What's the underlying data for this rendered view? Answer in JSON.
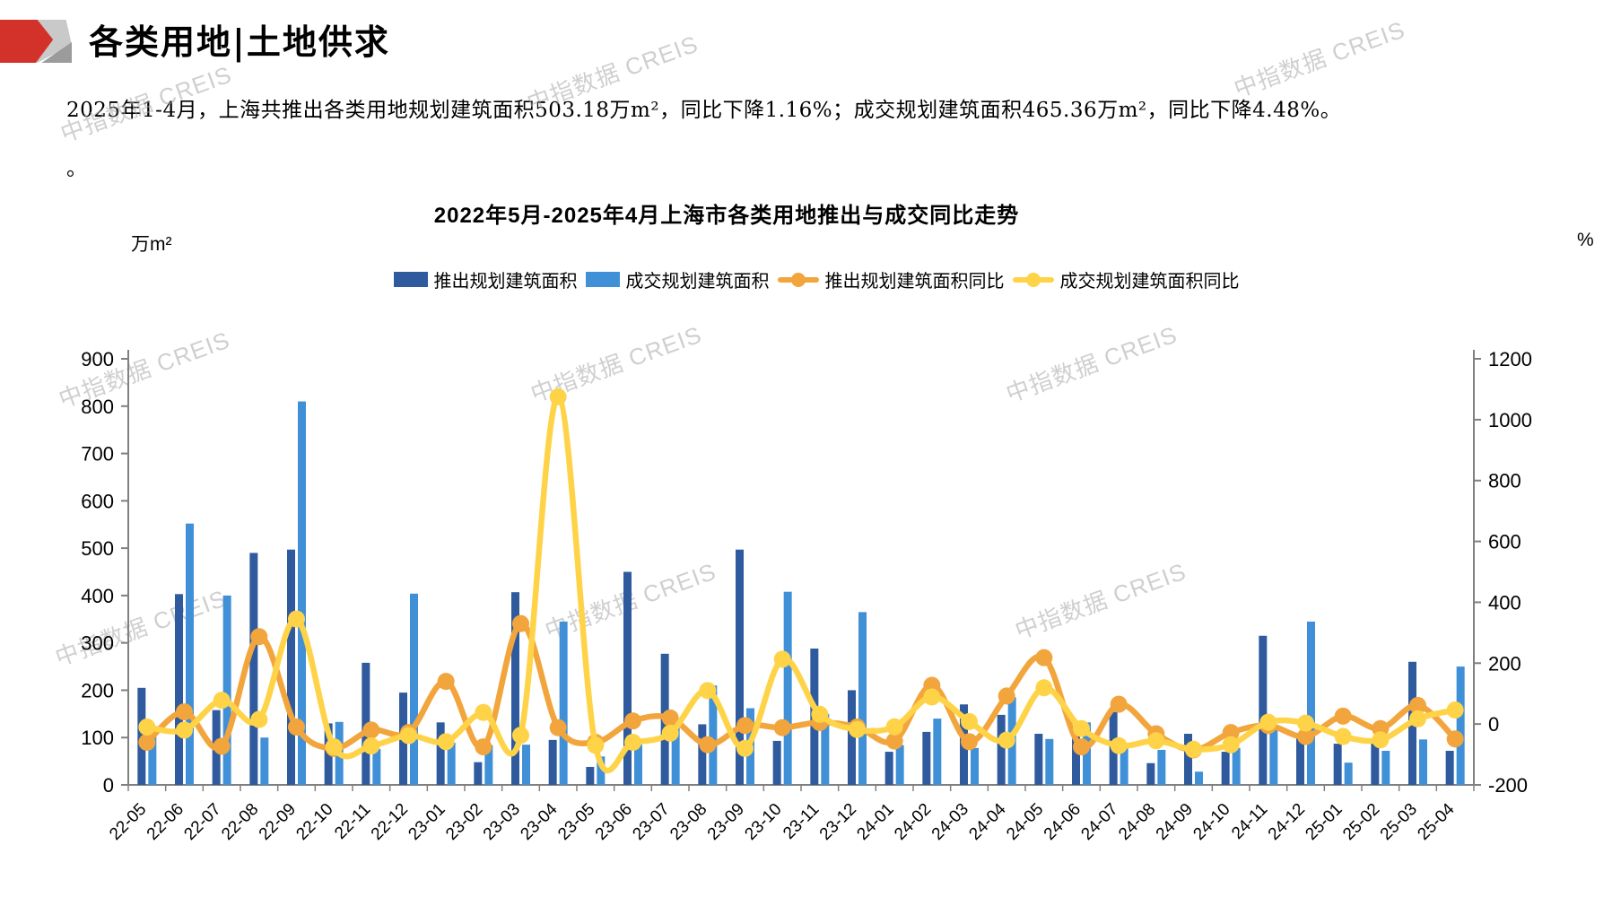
{
  "page": {
    "header_title": "各类用地|土地供求",
    "summary_line1": "2025年1-4月，上海共推出各类用地规划建筑面积503.18万m²，同比下降1.16%；成交规划建筑面积465.36万m²，同比下降4.48%。",
    "summary_line2": "。",
    "watermark_text": "中指数据 CREIS"
  },
  "chart_data": {
    "type": "bar+line combo",
    "title": "2022年5月-2025年4月上海市各类用地推出与成交同比走势",
    "left_axis": {
      "unit": "万m²",
      "min": 0,
      "max": 900,
      "step": 100
    },
    "right_axis": {
      "unit": "%",
      "min": -200,
      "max": 1200,
      "step": 200
    },
    "grid": "off",
    "legend_position": "top",
    "categories": [
      "22-05",
      "22-06",
      "22-07",
      "22-08",
      "22-09",
      "22-10",
      "22-11",
      "22-12",
      "23-01",
      "23-02",
      "23-03",
      "23-04",
      "23-05",
      "23-06",
      "23-07",
      "23-08",
      "23-09",
      "23-10",
      "23-11",
      "23-12",
      "24-01",
      "24-02",
      "24-03",
      "24-04",
      "24-05",
      "24-06",
      "24-07",
      "24-08",
      "24-09",
      "24-10",
      "24-11",
      "24-12",
      "25-01",
      "25-02",
      "25-03",
      "25-04"
    ],
    "series": [
      {
        "name": "推出规划建筑面积",
        "type": "bar",
        "axis": "left",
        "color": "#2F5B9E",
        "values": [
          205,
          403,
          158,
          490,
          497,
          130,
          258,
          195,
          132,
          48,
          407,
          95,
          38,
          450,
          277,
          128,
          497,
          93,
          288,
          200,
          70,
          112,
          170,
          148,
          108,
          112,
          154,
          46,
          108,
          70,
          315,
          106,
          87,
          87,
          260,
          72
        ]
      },
      {
        "name": "成交规划建筑面积",
        "type": "bar",
        "axis": "left",
        "color": "#4090D8",
        "values": [
          108,
          552,
          400,
          100,
          810,
          133,
          76,
          404,
          89,
          84,
          85,
          345,
          60,
          85,
          122,
          210,
          162,
          408,
          150,
          365,
          84,
          140,
          78,
          185,
          97,
          132,
          78,
          74,
          28,
          78,
          118,
          345,
          47,
          72,
          96,
          250
        ]
      },
      {
        "name": "推出规划建筑面积同比",
        "type": "line",
        "axis": "right",
        "color": "#F2A53C",
        "values": [
          -60,
          40,
          -73,
          287,
          -10,
          -80,
          -20,
          -28,
          140,
          -75,
          330,
          -12,
          -60,
          10,
          20,
          -68,
          -5,
          -12,
          5,
          -10,
          -56,
          127,
          -58,
          92,
          218,
          -75,
          65,
          -32,
          -85,
          -28,
          -5,
          -41,
          26,
          -15,
          61,
          -49
        ]
      },
      {
        "name": "成交规划建筑面积同比",
        "type": "line",
        "axis": "right",
        "color": "#FFD348",
        "values": [
          -10,
          -20,
          78,
          15,
          345,
          -75,
          -72,
          -38,
          -58,
          38,
          -37,
          1075,
          -70,
          -60,
          -30,
          110,
          -80,
          213,
          32,
          -18,
          -9,
          89,
          8,
          -53,
          119,
          -15,
          -71,
          -55,
          -83,
          -68,
          6,
          3,
          -41,
          -52,
          17,
          46
        ]
      }
    ]
  }
}
